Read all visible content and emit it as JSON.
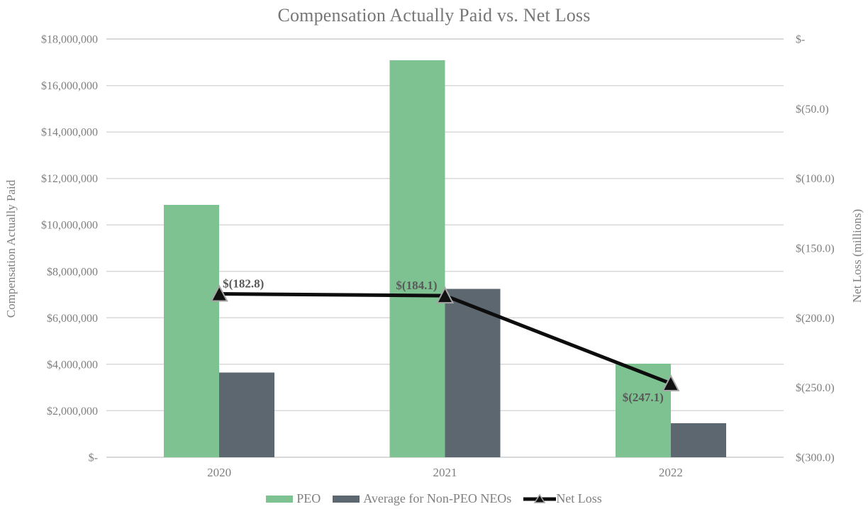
{
  "colors": {
    "peo_green": "#7dc290",
    "non_peo_gray": "#5c6770",
    "net_loss_line": "#0d0d0d",
    "marker_fill": "#111111",
    "marker_outline": "#a6a6a6",
    "gridline": "#d9d9d9",
    "axis_text": "#7f7f7f",
    "title_text": "#767676",
    "data_label_text": "#595959"
  },
  "chart_data": {
    "type": "combo-bar-line",
    "title": "Compensation Actually Paid vs. Net Loss",
    "categories": [
      "2020",
      "2021",
      "2022"
    ],
    "series": [
      {
        "name": "PEO",
        "type": "bar",
        "axis": "left",
        "values": [
          10860000,
          17080000,
          4030000
        ],
        "color_key": "peo_green"
      },
      {
        "name": "Average for Non-PEO NEOs",
        "type": "bar",
        "axis": "left",
        "values": [
          3640000,
          7250000,
          1460000
        ],
        "color_key": "non_peo_gray"
      },
      {
        "name": "Net Loss",
        "type": "line",
        "axis": "right",
        "values": [
          -182.8,
          -184.1,
          -247.1
        ],
        "point_labels": [
          "$(182.8)",
          "$(184.1)",
          "$(247.1)"
        ],
        "color_key": "net_loss_line"
      }
    ],
    "left_axis": {
      "title": "Compensation Actually Paid",
      "min": 0,
      "max": 18000000,
      "ticks": [
        {
          "v": 0,
          "label": "$-"
        },
        {
          "v": 2000000,
          "label": "$2,000,000"
        },
        {
          "v": 4000000,
          "label": "$4,000,000"
        },
        {
          "v": 6000000,
          "label": "$6,000,000"
        },
        {
          "v": 8000000,
          "label": "$8,000,000"
        },
        {
          "v": 10000000,
          "label": "$10,000,000"
        },
        {
          "v": 12000000,
          "label": "$12,000,000"
        },
        {
          "v": 14000000,
          "label": "$14,000,000"
        },
        {
          "v": 16000000,
          "label": "$16,000,000"
        },
        {
          "v": 18000000,
          "label": "$18,000,000"
        }
      ]
    },
    "right_axis": {
      "title": "Net Loss (millions)",
      "min": -300,
      "max": 0,
      "ticks": [
        {
          "v": 0,
          "label": "$-"
        },
        {
          "v": -50,
          "label": "$(50.0)"
        },
        {
          "v": -100,
          "label": "$(100.0)"
        },
        {
          "v": -150,
          "label": "$(150.0)"
        },
        {
          "v": -200,
          "label": "$(200.0)"
        },
        {
          "v": -250,
          "label": "$(250.0)"
        },
        {
          "v": -300,
          "label": "$(300.0)"
        }
      ]
    },
    "grid": true,
    "legend_position": "bottom",
    "legend": [
      "PEO",
      "Average for Non-PEO NEOs",
      "Net Loss"
    ]
  }
}
